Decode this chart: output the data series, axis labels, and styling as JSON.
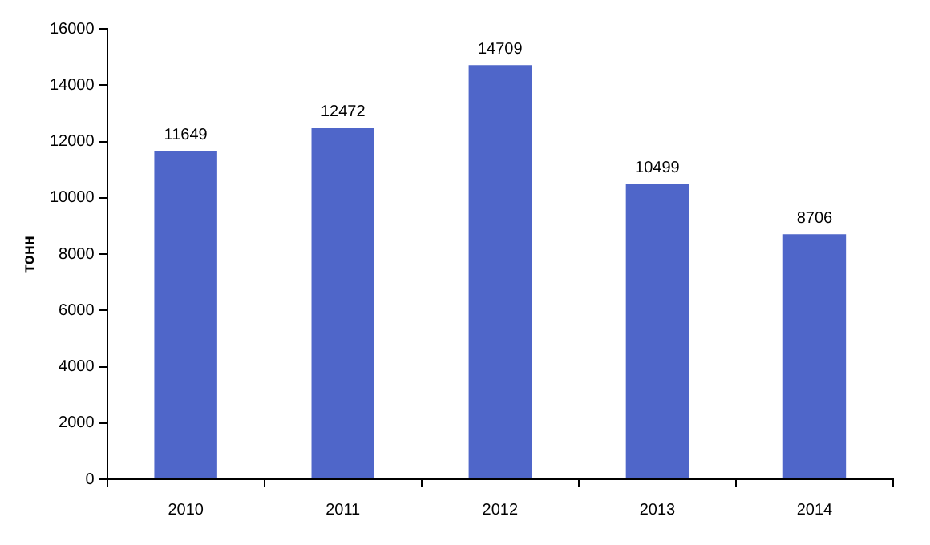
{
  "chart_data": {
    "type": "bar",
    "ylabel": "тонн",
    "categories": [
      "2010",
      "2011",
      "2012",
      "2013",
      "2014"
    ],
    "values": [
      11649,
      12472,
      14709,
      10499,
      8706
    ],
    "color": "#4f66c9",
    "ylim": [
      0,
      16000
    ],
    "yticks": [
      0,
      2000,
      4000,
      6000,
      8000,
      10000,
      12000,
      14000,
      16000
    ],
    "grid": false,
    "legend": false,
    "data_labels": true
  }
}
